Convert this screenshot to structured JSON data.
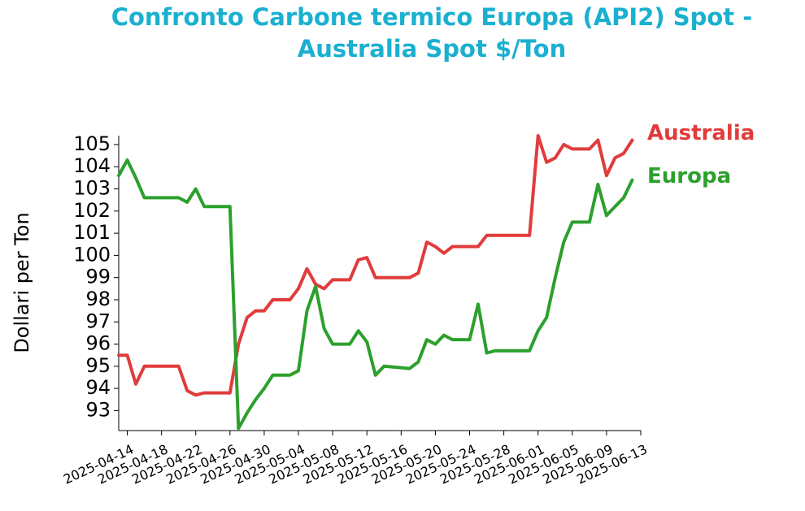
{
  "chart_data": {
    "type": "line",
    "title": "Confronto Carbone termico Europa (API2) Spot - Australia Spot $/Ton",
    "y_label": "Dollari per Ton",
    "x": [
      "2025-04-13",
      "2025-04-14",
      "2025-04-15",
      "2025-04-16",
      "2025-04-20",
      "2025-04-21",
      "2025-04-22",
      "2025-04-23",
      "2025-04-26",
      "2025-04-27",
      "2025-04-28",
      "2025-04-29",
      "2025-04-30",
      "2025-05-01",
      "2025-05-03",
      "2025-05-04",
      "2025-05-05",
      "2025-05-06",
      "2025-05-07",
      "2025-05-08",
      "2025-05-10",
      "2025-05-11",
      "2025-05-12",
      "2025-05-13",
      "2025-05-14",
      "2025-05-17",
      "2025-05-18",
      "2025-05-19",
      "2025-05-20",
      "2025-05-21",
      "2025-05-22",
      "2025-05-24",
      "2025-05-25",
      "2025-05-26",
      "2025-05-27",
      "2025-05-31",
      "2025-06-01",
      "2025-06-02",
      "2025-06-03",
      "2025-06-04",
      "2025-06-05",
      "2025-06-07",
      "2025-06-08",
      "2025-06-09",
      "2025-06-10",
      "2025-06-11",
      "2025-06-12"
    ],
    "series": [
      {
        "name": "Australia",
        "color": "#e03c3c",
        "values": [
          95.5,
          95.5,
          94.2,
          95.0,
          95.0,
          93.9,
          93.7,
          93.8,
          93.8,
          96.0,
          97.2,
          97.5,
          97.5,
          98.0,
          98.0,
          98.5,
          99.4,
          98.7,
          98.5,
          98.9,
          98.9,
          99.8,
          99.9,
          99.0,
          99.0,
          99.0,
          99.2,
          100.6,
          100.4,
          100.1,
          100.4,
          100.4,
          100.4,
          100.9,
          100.9,
          100.9,
          105.4,
          104.2,
          104.4,
          105.0,
          104.8,
          104.8,
          105.2,
          103.6,
          104.4,
          104.6,
          105.2
        ]
      },
      {
        "name": "Europa",
        "color": "#2ca02c",
        "values": [
          103.6,
          104.3,
          103.5,
          102.6,
          102.6,
          102.4,
          103.0,
          102.2,
          102.2,
          92.2,
          92.9,
          93.5,
          94.0,
          94.6,
          94.6,
          94.8,
          97.5,
          98.6,
          96.7,
          96.0,
          96.0,
          96.6,
          96.1,
          94.6,
          95.0,
          94.9,
          95.2,
          96.2,
          96.0,
          96.4,
          96.2,
          96.2,
          97.8,
          95.6,
          95.7,
          95.7,
          96.6,
          97.2,
          99.0,
          100.6,
          101.5,
          101.5,
          103.2,
          101.8,
          102.2,
          102.6,
          103.4
        ]
      }
    ],
    "xlim": [
      "2025-04-13",
      "2025-06-13"
    ],
    "xticks": [
      "2025-04-14",
      "2025-04-18",
      "2025-04-22",
      "2025-04-26",
      "2025-04-30",
      "2025-05-04",
      "2025-05-08",
      "2025-05-12",
      "2025-05-16",
      "2025-05-20",
      "2025-05-24",
      "2025-05-28",
      "2025-06-01",
      "2025-06-05",
      "2025-06-09",
      "2025-06-13"
    ],
    "ylim": [
      92.1,
      105.4
    ],
    "yticks": [
      93,
      94,
      95,
      96,
      97,
      98,
      99,
      100,
      101,
      102,
      103,
      104,
      105
    ]
  }
}
